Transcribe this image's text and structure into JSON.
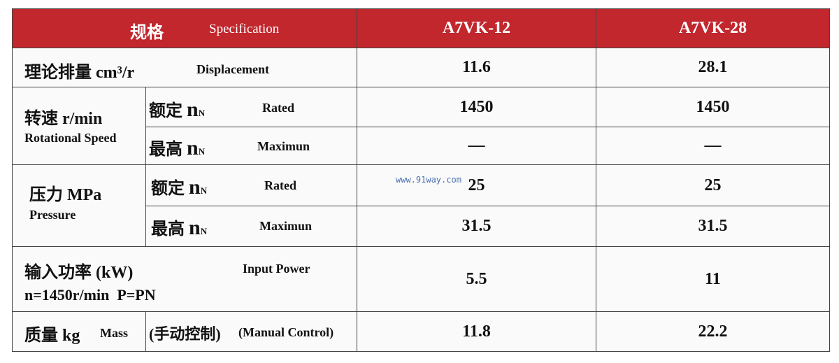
{
  "header": {
    "spec_zh": "规格",
    "spec_en": "Specification",
    "models": [
      "A7VK-12",
      "A7VK-28"
    ]
  },
  "rows": [
    {
      "label_zh": "理论排量 cm³/r",
      "label_en": "Displacement",
      "values": [
        "11.6",
        "28.1"
      ]
    },
    {
      "label_zh": "转速 r/min",
      "label_en": "Rotational Speed",
      "sub": [
        {
          "label_zh": "额定",
          "symbol": "n",
          "subscript": "N",
          "label_en": "Rated",
          "values": [
            "1450",
            "1450"
          ]
        },
        {
          "label_zh": "最高",
          "symbol": "n",
          "subscript": "N",
          "label_en": "Maximun",
          "values": [
            "—",
            "—"
          ]
        }
      ]
    },
    {
      "label_zh": "压力 MPa",
      "label_en": "Pressure",
      "sub": [
        {
          "label_zh": "额定",
          "symbol": "n",
          "subscript": "N",
          "label_en": "Rated",
          "values": [
            "25",
            "25"
          ]
        },
        {
          "label_zh": "最高",
          "symbol": "n",
          "subscript": "N",
          "label_en": "Maximun",
          "values": [
            "31.5",
            "31.5"
          ]
        }
      ]
    },
    {
      "label_zh": "输入功率 (kW)",
      "label_en": "Input Power",
      "condition": "n=1450r/min  P=PN",
      "values": [
        "5.5",
        "11"
      ]
    },
    {
      "label_zh": "质量 kg",
      "label_en": "Mass",
      "note_zh": "(手动控制)",
      "note_en": "(Manual Control)",
      "values": [
        "11.8",
        "22.2"
      ]
    }
  ],
  "watermark": "www.91way.com"
}
